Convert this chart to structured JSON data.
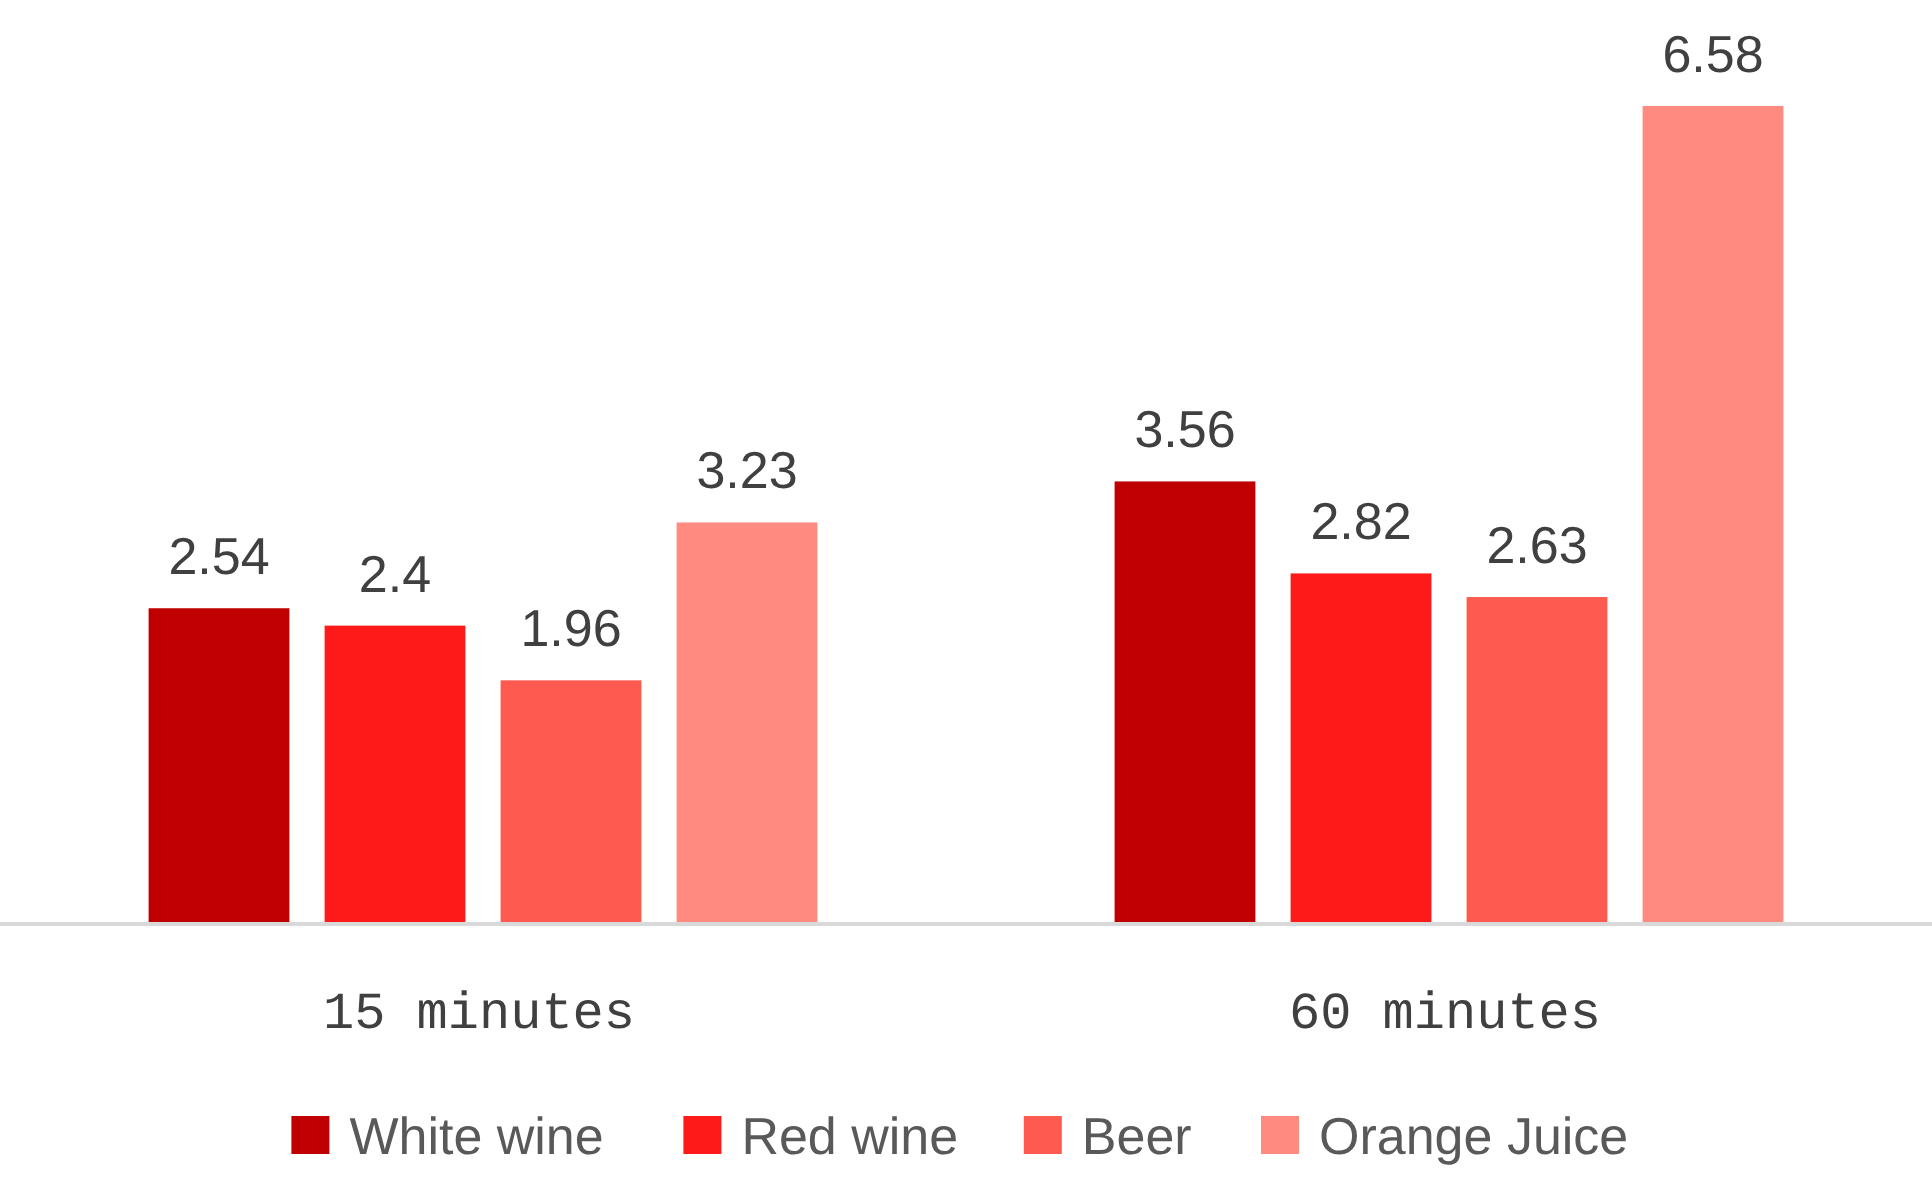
{
  "chart_data": {
    "type": "bar",
    "categories": [
      "15 minutes",
      "60 minutes"
    ],
    "series": [
      {
        "name": "White wine",
        "color": "#c00000",
        "values": [
          2.54,
          3.56
        ]
      },
      {
        "name": "Red wine",
        "color": "#ff1a1a",
        "values": [
          2.4,
          2.82
        ]
      },
      {
        "name": "Beer",
        "color": "#ff5a50",
        "values": [
          1.96,
          2.63
        ]
      },
      {
        "name": "Orange Juice",
        "color": "#ff8a80",
        "values": [
          3.23,
          6.58
        ]
      }
    ],
    "data_labels": true,
    "legend": "bottom"
  }
}
